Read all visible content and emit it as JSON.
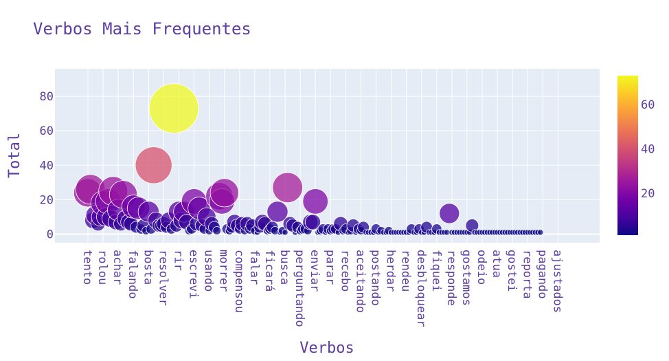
{
  "chart_data": {
    "type": "scatter",
    "title": "Verbos Mais Frequentes",
    "xlabel": "Verbos",
    "ylabel": "Total",
    "ylim": [
      -5,
      96
    ],
    "y_ticks": [
      0,
      20,
      40,
      60,
      80
    ],
    "colorbar_ticks": [
      20,
      40,
      60
    ],
    "color_range": [
      1,
      73
    ],
    "grid": true,
    "legend": "colorbar right",
    "x_tick_labels": [
      "tento",
      "rolou",
      "achar",
      "falando",
      "bosta",
      "resolver",
      "rir",
      "escrevi",
      "usando",
      "morrer",
      "compensou",
      "falar",
      "ficará",
      "busca",
      "perguntando",
      "enviar",
      "parar",
      "recebo",
      "aceitando",
      "postando",
      "herdar",
      "rendeu",
      "desbloquear",
      "fiquei",
      "responde",
      "gostamos",
      "odeio",
      "atua",
      "gostei",
      "reporta",
      "pagando",
      "ajustados"
    ],
    "points": [
      [
        0,
        24
      ],
      [
        1,
        26
      ],
      [
        2,
        8
      ],
      [
        3,
        11
      ],
      [
        4,
        6
      ],
      [
        5,
        10
      ],
      [
        6,
        18
      ],
      [
        7,
        10
      ],
      [
        8,
        19
      ],
      [
        9,
        9
      ],
      [
        10,
        25
      ],
      [
        11,
        7
      ],
      [
        12,
        14
      ],
      [
        13,
        6
      ],
      [
        14,
        23
      ],
      [
        15,
        9
      ],
      [
        16,
        7
      ],
      [
        17,
        6
      ],
      [
        18,
        16
      ],
      [
        19,
        4
      ],
      [
        20,
        15
      ],
      [
        21,
        3
      ],
      [
        22,
        5
      ],
      [
        23,
        2
      ],
      [
        24,
        13
      ],
      [
        25,
        3
      ],
      [
        26,
        40
      ],
      [
        27,
        8
      ],
      [
        28,
        5
      ],
      [
        29,
        5
      ],
      [
        30,
        6
      ],
      [
        31,
        4
      ],
      [
        32,
        8
      ],
      [
        33,
        3
      ],
      [
        34,
        73
      ],
      [
        35,
        5
      ],
      [
        36,
        13
      ],
      [
        37,
        8
      ],
      [
        38,
        13
      ],
      [
        39,
        7
      ],
      [
        40,
        2
      ],
      [
        41,
        3
      ],
      [
        42,
        19
      ],
      [
        43,
        6
      ],
      [
        44,
        15
      ],
      [
        45,
        5
      ],
      [
        46,
        3
      ],
      [
        47,
        10
      ],
      [
        48,
        2
      ],
      [
        49,
        6
      ],
      [
        50,
        4
      ],
      [
        51,
        2
      ],
      [
        52,
        22
      ],
      [
        53,
        19
      ],
      [
        54,
        24
      ],
      [
        55,
        3
      ],
      [
        56,
        2
      ],
      [
        57,
        4
      ],
      [
        58,
        7
      ],
      [
        59,
        5
      ],
      [
        60,
        3
      ],
      [
        61,
        6
      ],
      [
        62,
        2
      ],
      [
        63,
        6
      ],
      [
        64,
        3
      ],
      [
        65,
        5
      ],
      [
        66,
        2
      ],
      [
        67,
        1
      ],
      [
        68,
        4
      ],
      [
        69,
        7
      ],
      [
        70,
        6
      ],
      [
        71,
        2
      ],
      [
        72,
        3
      ],
      [
        73,
        4
      ],
      [
        74,
        2
      ],
      [
        75,
        13
      ],
      [
        76,
        1
      ],
      [
        77,
        2
      ],
      [
        78,
        1
      ],
      [
        79,
        27
      ],
      [
        80,
        6
      ],
      [
        81,
        5
      ],
      [
        82,
        1
      ],
      [
        83,
        4
      ],
      [
        84,
        2
      ],
      [
        85,
        3
      ],
      [
        86,
        3
      ],
      [
        87,
        2
      ],
      [
        88,
        7
      ],
      [
        89,
        7
      ],
      [
        90,
        19
      ],
      [
        91,
        1
      ],
      [
        92,
        2
      ],
      [
        93,
        3
      ],
      [
        94,
        1
      ],
      [
        95,
        3
      ],
      [
        96,
        2
      ],
      [
        97,
        3
      ],
      [
        98,
        3
      ],
      [
        99,
        1
      ],
      [
        100,
        6
      ],
      [
        101,
        2
      ],
      [
        102,
        3
      ],
      [
        103,
        1
      ],
      [
        104,
        2
      ],
      [
        105,
        5
      ],
      [
        106,
        1
      ],
      [
        107,
        3
      ],
      [
        108,
        2
      ],
      [
        109,
        4
      ],
      [
        110,
        1
      ],
      [
        111,
        1
      ],
      [
        112,
        1
      ],
      [
        113,
        1
      ],
      [
        114,
        3
      ],
      [
        115,
        1
      ],
      [
        116,
        2
      ],
      [
        117,
        1
      ],
      [
        118,
        1
      ],
      [
        119,
        2
      ],
      [
        120,
        1
      ],
      [
        121,
        1
      ],
      [
        122,
        1
      ],
      [
        123,
        1
      ],
      [
        124,
        1
      ],
      [
        125,
        1
      ],
      [
        126,
        1
      ],
      [
        127,
        1
      ],
      [
        128,
        3
      ],
      [
        129,
        1
      ],
      [
        130,
        1
      ],
      [
        131,
        3
      ],
      [
        132,
        1
      ],
      [
        133,
        1
      ],
      [
        134,
        4
      ],
      [
        135,
        1
      ],
      [
        136,
        1
      ],
      [
        137,
        1
      ],
      [
        138,
        3
      ],
      [
        139,
        1
      ],
      [
        140,
        1
      ],
      [
        141,
        1
      ],
      [
        142,
        1
      ],
      [
        143,
        12
      ],
      [
        144,
        1
      ],
      [
        145,
        1
      ],
      [
        146,
        1
      ],
      [
        147,
        1
      ],
      [
        148,
        1
      ],
      [
        149,
        1
      ],
      [
        150,
        1
      ],
      [
        151,
        1
      ],
      [
        152,
        5
      ],
      [
        153,
        1
      ],
      [
        154,
        1
      ],
      [
        155,
        1
      ],
      [
        156,
        1
      ],
      [
        157,
        1
      ],
      [
        158,
        1
      ],
      [
        159,
        1
      ],
      [
        160,
        1
      ],
      [
        161,
        1
      ],
      [
        162,
        1
      ],
      [
        163,
        1
      ],
      [
        164,
        1
      ],
      [
        165,
        1
      ],
      [
        166,
        1
      ],
      [
        167,
        1
      ],
      [
        168,
        1
      ],
      [
        169,
        1
      ],
      [
        170,
        1
      ],
      [
        171,
        1
      ],
      [
        172,
        1
      ],
      [
        173,
        1
      ],
      [
        174,
        1
      ],
      [
        175,
        1
      ],
      [
        176,
        1
      ],
      [
        177,
        1
      ],
      [
        178,
        1
      ],
      [
        179,
        1
      ]
    ]
  }
}
